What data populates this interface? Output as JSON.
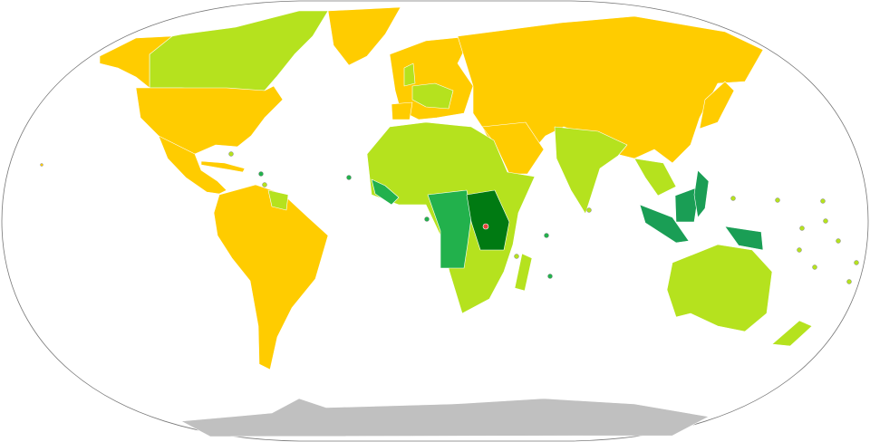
{
  "map": {
    "projection": "robinson",
    "colors": {
      "category_1": "#FFCC00",
      "category_2": "#B5E21E",
      "category_3": "#22B14C",
      "category_4": "#1A9E55",
      "category_5": "#007A12",
      "no_data": "#C0C0C0",
      "highlight": "#E8453C",
      "outline": "#777777",
      "ocean": "#FFFFFF"
    }
  }
}
